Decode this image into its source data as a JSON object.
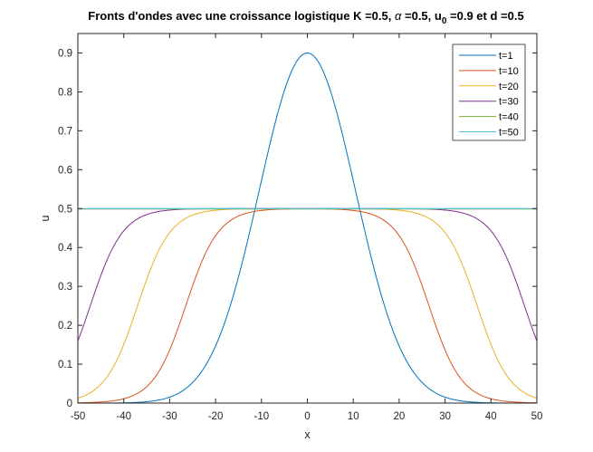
{
  "chart_data": {
    "type": "line",
    "title": {
      "prefix": "Fronts d'ondes avec une croissance logistique K =0.5, ",
      "alpha_symbol": "α",
      "alpha_part": " =0.5, u",
      "u0_subscript": "0",
      "suffix": " =0.9 et d =0.5"
    },
    "xlabel": "x",
    "ylabel": "u",
    "xlim": [
      -50,
      50
    ],
    "ylim": [
      0,
      0.95
    ],
    "xticks": [
      -50,
      -40,
      -30,
      -20,
      -10,
      0,
      10,
      20,
      30,
      40,
      50
    ],
    "xtick_labels": [
      "-50",
      "-40",
      "-30",
      "-20",
      "-10",
      "0",
      "10",
      "20",
      "30",
      "40",
      "50"
    ],
    "yticks": [
      0,
      0.1,
      0.2,
      0.3,
      0.4,
      0.5,
      0.6,
      0.7,
      0.8,
      0.9
    ],
    "ytick_labels": [
      "0",
      "0.1",
      "0.2",
      "0.3",
      "0.4",
      "0.5",
      "0.6",
      "0.7",
      "0.8",
      "0.9"
    ],
    "legend_position": "top-right",
    "series": [
      {
        "name": "t=1",
        "color": "#0072BD",
        "shape": "gaussian",
        "peak": 0.9,
        "width": 10.5
      },
      {
        "name": "t=10",
        "color": "#D95319",
        "shape": "front",
        "plateau": 0.5,
        "front_position": 26.5,
        "steepness": 0.28
      },
      {
        "name": "t=20",
        "color": "#EDB120",
        "shape": "front",
        "plateau": 0.5,
        "front_position": 37.0,
        "steepness": 0.28
      },
      {
        "name": "t=30",
        "color": "#7E2F8E",
        "shape": "front",
        "plateau": 0.5,
        "front_position": 47.3,
        "steepness": 0.28
      },
      {
        "name": "t=40",
        "color": "#77AC30",
        "shape": "flat",
        "value": 0.499
      },
      {
        "name": "t=50",
        "color": "#4DBEEE",
        "shape": "flat",
        "value": 0.5
      }
    ]
  }
}
